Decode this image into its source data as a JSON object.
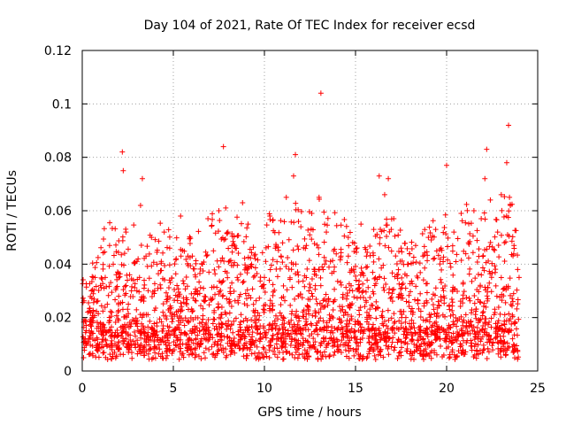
{
  "chart_data": {
    "type": "scatter",
    "title": "Day 104 of 2021, Rate Of TEC Index for receiver ecsd",
    "xlabel": "GPS time / hours",
    "ylabel": "ROTI / TECUs",
    "xlim": [
      0,
      25
    ],
    "ylim": [
      0,
      0.12
    ],
    "xticks": [
      0,
      5,
      10,
      15,
      20,
      25
    ],
    "xtick_labels": [
      "0",
      "5",
      "10",
      "15",
      "20",
      "25"
    ],
    "yticks": [
      0,
      0.02,
      0.04,
      0.06,
      0.08,
      0.1,
      0.12
    ],
    "ytick_labels": [
      "0",
      "0.02",
      "0.04",
      "0.06",
      "0.08",
      "0.1",
      "0.12"
    ],
    "grid": true,
    "marker": "+",
    "color": "#ff0000",
    "series": [
      {
        "name": "",
        "points": [
          [
            0.1,
            0.012
          ],
          [
            0.3,
            0.022
          ],
          [
            0.5,
            0.03
          ],
          [
            0.6,
            0.035
          ],
          [
            0.8,
            0.026
          ],
          [
            1.0,
            0.018
          ],
          [
            1.2,
            0.031
          ],
          [
            1.5,
            0.047
          ],
          [
            1.7,
            0.04
          ],
          [
            2.0,
            0.028
          ],
          [
            2.2,
            0.082
          ],
          [
            2.25,
            0.075
          ],
          [
            2.4,
            0.052
          ],
          [
            2.6,
            0.036
          ],
          [
            3.0,
            0.03
          ],
          [
            3.2,
            0.062
          ],
          [
            3.3,
            0.072
          ],
          [
            3.5,
            0.043
          ],
          [
            3.8,
            0.05
          ],
          [
            4.1,
            0.04
          ],
          [
            4.5,
            0.052
          ],
          [
            4.8,
            0.046
          ],
          [
            5.2,
            0.032
          ],
          [
            5.4,
            0.058
          ],
          [
            5.8,
            0.043
          ],
          [
            6.2,
            0.036
          ],
          [
            6.6,
            0.04
          ],
          [
            6.9,
            0.057
          ],
          [
            7.2,
            0.045
          ],
          [
            7.5,
            0.06
          ],
          [
            7.75,
            0.084
          ],
          [
            8.0,
            0.052
          ],
          [
            8.4,
            0.046
          ],
          [
            8.8,
            0.063
          ],
          [
            9.1,
            0.055
          ],
          [
            9.5,
            0.042
          ],
          [
            10.0,
            0.035
          ],
          [
            10.3,
            0.058
          ],
          [
            10.6,
            0.046
          ],
          [
            11.0,
            0.048
          ],
          [
            11.2,
            0.065
          ],
          [
            11.6,
            0.073
          ],
          [
            11.7,
            0.081
          ],
          [
            12.0,
            0.054
          ],
          [
            12.3,
            0.047
          ],
          [
            12.6,
            0.059
          ],
          [
            13.0,
            0.065
          ],
          [
            13.1,
            0.104
          ],
          [
            13.4,
            0.052
          ],
          [
            13.8,
            0.045
          ],
          [
            14.2,
            0.043
          ],
          [
            14.6,
            0.05
          ],
          [
            14.9,
            0.038
          ],
          [
            15.3,
            0.055
          ],
          [
            15.6,
            0.043
          ],
          [
            16.0,
            0.053
          ],
          [
            16.3,
            0.073
          ],
          [
            16.6,
            0.066
          ],
          [
            16.8,
            0.072
          ],
          [
            17.1,
            0.057
          ],
          [
            17.5,
            0.046
          ],
          [
            17.9,
            0.04
          ],
          [
            18.3,
            0.047
          ],
          [
            18.7,
            0.043
          ],
          [
            19.0,
            0.05
          ],
          [
            19.4,
            0.053
          ],
          [
            19.7,
            0.046
          ],
          [
            20.0,
            0.077
          ],
          [
            20.4,
            0.052
          ],
          [
            20.8,
            0.059
          ],
          [
            21.2,
            0.048
          ],
          [
            21.5,
            0.06
          ],
          [
            21.9,
            0.057
          ],
          [
            22.1,
            0.072
          ],
          [
            22.2,
            0.083
          ],
          [
            22.4,
            0.064
          ],
          [
            22.8,
            0.052
          ],
          [
            23.0,
            0.066
          ],
          [
            23.3,
            0.078
          ],
          [
            23.4,
            0.092
          ],
          [
            23.5,
            0.062
          ],
          [
            23.7,
            0.047
          ],
          [
            23.9,
            0.038
          ]
        ]
      }
    ]
  }
}
